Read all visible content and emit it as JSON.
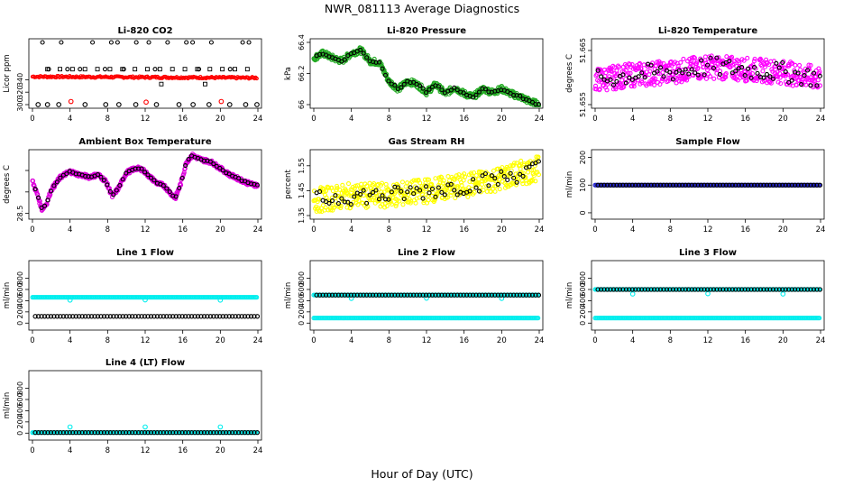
{
  "figure": {
    "title": "NWR_081113  Average Diagnostics",
    "xlabel": "Hour of Day (UTC)"
  },
  "chart_data": [
    {
      "type": "scatter",
      "title": "Li-820 CO2",
      "ylabel": "Licor ppm",
      "xlim": [
        0,
        24
      ],
      "ylim": [
        300,
        400
      ],
      "xticks": [
        0,
        4,
        8,
        12,
        16,
        20,
        24
      ],
      "yticks": [
        300,
        320,
        340
      ],
      "series": [
        {
          "name": "band",
          "color": "#ff0000",
          "style": "band",
          "x": [
            0,
            24
          ],
          "y": [
            345,
            343
          ]
        },
        {
          "name": "upper",
          "color": "#000000",
          "style": "points",
          "step": 0.333,
          "pattern": [
            400,
            400,
            357,
            333,
            400,
            357,
            400,
            357,
            333,
            400,
            400,
            357
          ],
          "phase": 0.4
        },
        {
          "name": "low",
          "color": "#000000",
          "style": "points",
          "x": [
            0.6,
            1.6,
            2.8,
            5.6,
            7.8,
            9.2,
            11.0,
            13.2,
            15.6,
            17.1,
            18.8,
            21.0,
            22.7,
            23.9
          ],
          "y": [
            300,
            300,
            300,
            300,
            300,
            300,
            300,
            300,
            300,
            300,
            300,
            300,
            300,
            300
          ]
        },
        {
          "name": "red-points",
          "color": "#ff0000",
          "style": "points",
          "x": [
            4.1,
            12.1,
            20.1
          ],
          "y": [
            305,
            304,
            305
          ]
        }
      ]
    },
    {
      "type": "scatter",
      "title": "Li-820 Pressure",
      "ylabel": "kPa",
      "xlim": [
        0,
        24
      ],
      "ylim": [
        66.0,
        66.4
      ],
      "xticks": [
        0,
        4,
        8,
        12,
        16,
        20,
        24
      ],
      "yticks": [
        66.0,
        66.2,
        66.4
      ],
      "series": [
        {
          "name": "fast",
          "color": "#22aa22",
          "style": "dense",
          "spread": 0.02,
          "x": [
            0,
            1,
            2,
            3,
            4,
            5,
            6,
            7,
            8,
            9,
            10,
            11,
            12,
            13,
            14,
            15,
            16,
            17,
            18,
            19,
            20,
            21,
            22,
            23,
            24
          ],
          "y": [
            66.3,
            66.33,
            66.3,
            66.28,
            66.33,
            66.35,
            66.28,
            66.27,
            66.15,
            66.1,
            66.15,
            66.13,
            66.08,
            66.13,
            66.07,
            66.11,
            66.07,
            66.05,
            66.1,
            66.08,
            66.1,
            66.07,
            66.05,
            66.02,
            66.0
          ]
        },
        {
          "name": "avg",
          "color": "#000000",
          "style": "trace",
          "step": 0.333
        }
      ]
    },
    {
      "type": "scatter",
      "title": "Li-820 Temperature",
      "ylabel": "degrees C",
      "xlim": [
        0,
        24
      ],
      "ylim": [
        51.655,
        51.6665
      ],
      "xticks": [
        0,
        4,
        8,
        12,
        16,
        20,
        24
      ],
      "yticks": [
        51.655,
        51.665
      ],
      "ytick_labels": [
        "51.655",
        "51.665"
      ],
      "series": [
        {
          "name": "fast",
          "color": "#ff00ff",
          "style": "cloud",
          "spread": 0.0022,
          "x": [
            0,
            4,
            8,
            12,
            16,
            20,
            24
          ],
          "y": [
            51.6595,
            51.6605,
            51.661,
            51.662,
            51.6615,
            51.661,
            51.6598
          ]
        },
        {
          "name": "avg",
          "color": "#000000",
          "style": "cloud-sub",
          "step": 0.333,
          "spread": 0.0018
        }
      ]
    },
    {
      "type": "scatter",
      "title": "Ambient Box Temperature",
      "ylabel": "degrees C",
      "xlim": [
        0,
        24
      ],
      "ylim": [
        28.4,
        31.3
      ],
      "xticks": [
        0,
        4,
        8,
        12,
        16,
        20,
        24
      ],
      "yticks": [
        28.5,
        29.5,
        30.5
      ],
      "ytick_labels": [
        "28.5",
        "",
        ""
      ],
      "series": [
        {
          "name": "fast",
          "color": "#dd00dd",
          "style": "dense",
          "spread": 0.09,
          "x": [
            0,
            0.5,
            1.0,
            1.5,
            2.0,
            3.0,
            4.0,
            5.0,
            6.0,
            7.0,
            7.8,
            8.5,
            9.2,
            10.0,
            11.0,
            11.7,
            12.5,
            13.3,
            14.0,
            14.6,
            15.2,
            15.8,
            16.4,
            17.0,
            18.0,
            19.0,
            20.0,
            21.0,
            22.0,
            23.0,
            24.0
          ],
          "y": [
            30.0,
            29.4,
            28.7,
            28.95,
            29.6,
            30.2,
            30.45,
            30.3,
            30.2,
            30.3,
            30.0,
            29.3,
            29.7,
            30.4,
            30.6,
            30.55,
            30.2,
            29.9,
            29.8,
            29.5,
            29.2,
            29.9,
            30.9,
            31.2,
            31.0,
            30.9,
            30.6,
            30.3,
            30.1,
            29.9,
            29.8
          ]
        },
        {
          "name": "avg",
          "color": "#000000",
          "style": "trace",
          "step": 0.333
        }
      ]
    },
    {
      "type": "scatter",
      "title": "Gas Stream RH",
      "ylabel": "percent",
      "xlim": [
        0,
        24
      ],
      "ylim": [
        1.35,
        1.6
      ],
      "xticks": [
        0,
        4,
        8,
        12,
        16,
        20,
        24
      ],
      "yticks": [
        1.35,
        1.45,
        1.55
      ],
      "series": [
        {
          "name": "fast",
          "color": "#ffff00",
          "style": "cloud",
          "spread": 0.05,
          "x": [
            0,
            4,
            8,
            12,
            16,
            20,
            24
          ],
          "y": [
            1.41,
            1.43,
            1.43,
            1.45,
            1.47,
            1.5,
            1.54
          ]
        },
        {
          "name": "avg",
          "color": "#000000",
          "style": "cloud-sub",
          "step": 0.333,
          "spread": 0.035
        }
      ]
    },
    {
      "type": "scatter",
      "title": "Sample Flow",
      "ylabel": "ml/min",
      "xlim": [
        0,
        24
      ],
      "ylim": [
        -10,
        215
      ],
      "xticks": [
        0,
        4,
        8,
        12,
        16,
        20,
        24
      ],
      "yticks": [
        0,
        100,
        200
      ],
      "series": [
        {
          "name": "fast",
          "color": "#2020cc",
          "style": "line",
          "x": [
            0,
            24
          ],
          "y": [
            100,
            100
          ]
        },
        {
          "name": "avg",
          "color": "#000000",
          "style": "trace-flat",
          "step": 0.333,
          "y": 100
        }
      ]
    },
    {
      "type": "scatter",
      "title": "Line 1 Flow",
      "ylabel": "ml/min",
      "xlim": [
        0,
        24
      ],
      "ylim": [
        -60,
        1050
      ],
      "xticks": [
        0,
        4,
        8,
        12,
        16,
        20,
        24
      ],
      "yticks": [
        0,
        200,
        400,
        600,
        800
      ],
      "series": [
        {
          "name": "cyan",
          "color": "#00eeee",
          "style": "line",
          "x": [
            0,
            24
          ],
          "y": [
            460,
            460
          ]
        },
        {
          "name": "cyan-dips",
          "color": "#00eeee",
          "style": "points",
          "x": [
            4,
            12,
            20
          ],
          "y": [
            410,
            415,
            410
          ]
        },
        {
          "name": "avg",
          "color": "#000000",
          "style": "trace-flat",
          "step": 0.333,
          "y": 120
        }
      ]
    },
    {
      "type": "scatter",
      "title": "Line 2 Flow",
      "ylabel": "ml/min",
      "xlim": [
        0,
        24
      ],
      "ylim": [
        -60,
        1050
      ],
      "xticks": [
        0,
        4,
        8,
        12,
        16,
        20,
        24
      ],
      "yticks": [
        0,
        200,
        400,
        600,
        800
      ],
      "series": [
        {
          "name": "cyan-high",
          "color": "#00eeee",
          "style": "line",
          "x": [
            0,
            24
          ],
          "y": [
            500,
            500
          ]
        },
        {
          "name": "cyan-low",
          "color": "#00eeee",
          "style": "line",
          "x": [
            0,
            24
          ],
          "y": [
            90,
            90
          ]
        },
        {
          "name": "cyan-dips",
          "color": "#00eeee",
          "style": "points",
          "x": [
            4,
            12,
            20
          ],
          "y": [
            440,
            445,
            440
          ]
        },
        {
          "name": "avg",
          "color": "#000000",
          "style": "trace-flat",
          "step": 0.333,
          "y": 500
        }
      ]
    },
    {
      "type": "scatter",
      "title": "Line 3 Flow",
      "ylabel": "ml/min",
      "xlim": [
        0,
        24
      ],
      "ylim": [
        -60,
        1050
      ],
      "xticks": [
        0,
        4,
        8,
        12,
        16,
        20,
        24
      ],
      "yticks": [
        0,
        200,
        400,
        600,
        800
      ],
      "series": [
        {
          "name": "cyan-high",
          "color": "#00eeee",
          "style": "line",
          "x": [
            0,
            24
          ],
          "y": [
            600,
            600
          ]
        },
        {
          "name": "cyan-low",
          "color": "#00eeee",
          "style": "line",
          "x": [
            0,
            24
          ],
          "y": [
            90,
            90
          ]
        },
        {
          "name": "cyan-dips",
          "color": "#00eeee",
          "style": "points",
          "x": [
            4,
            12,
            20
          ],
          "y": [
            520,
            525,
            520
          ]
        },
        {
          "name": "avg",
          "color": "#000000",
          "style": "trace-flat",
          "step": 0.333,
          "y": 600
        }
      ]
    },
    {
      "type": "scatter",
      "title": "Line 4 (LT) Flow",
      "ylabel": "ml/min",
      "xlim": [
        0,
        24
      ],
      "ylim": [
        -60,
        1050
      ],
      "xticks": [
        0,
        4,
        8,
        12,
        16,
        20,
        24
      ],
      "yticks": [
        0,
        200,
        400,
        600,
        800
      ],
      "series": [
        {
          "name": "cyan",
          "color": "#00eeee",
          "style": "line",
          "x": [
            0,
            24
          ],
          "y": [
            10,
            10
          ]
        },
        {
          "name": "cyan-spikes",
          "color": "#00eeee",
          "style": "points",
          "x": [
            4,
            12,
            20
          ],
          "y": [
            110,
            110,
            110
          ]
        },
        {
          "name": "avg",
          "color": "#000000",
          "style": "trace-flat",
          "step": 0.333,
          "y": 10
        }
      ]
    }
  ]
}
